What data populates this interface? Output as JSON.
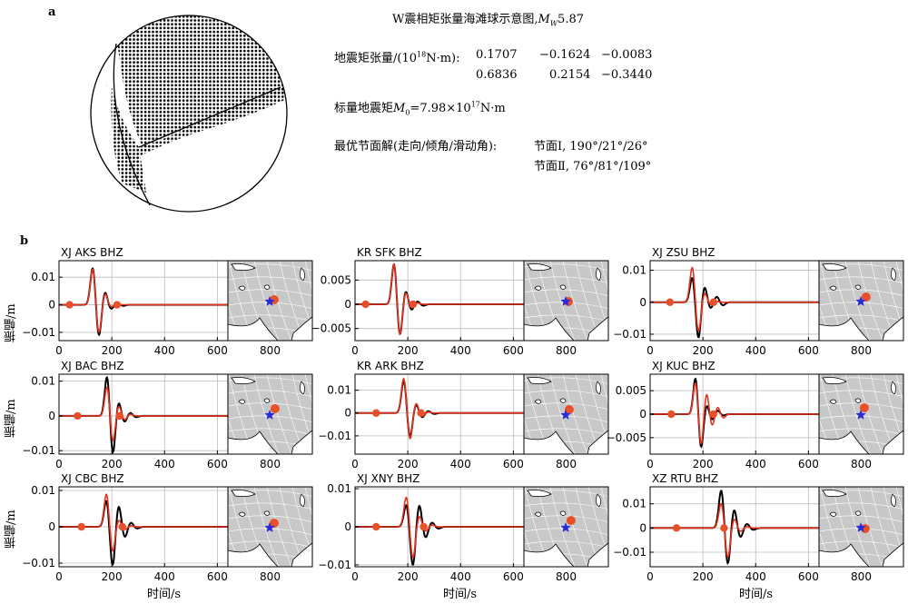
{
  "panel_a": {
    "label": "a",
    "title_prefix": "W震相矩张量海滩球示意图,",
    "mw_symbol": "M",
    "mw_sub": "W",
    "mw_value": "5.87",
    "tensor_label": "地震矩张量/(10",
    "tensor_exp": "18",
    "tensor_unit": "N·m):",
    "tensor_row1": [
      "0.1707",
      "−0.1624",
      "−0.0083"
    ],
    "tensor_row2": [
      "0.6836",
      "0.2154",
      "−0.3440"
    ],
    "scalar_label": "标量地震矩",
    "scalar_symbol": "M",
    "scalar_sub": "0",
    "scalar_value": "=7.98×10",
    "scalar_exp": "17",
    "scalar_unit": "N·m",
    "plane_label": "最优节面解(走向/倾角/滑动角):",
    "plane1": "节面Ⅰ, 190°/21°/26°",
    "plane2": "节面Ⅱ, 76°/81°/109°"
  },
  "panel_b": {
    "label": "b",
    "xlabel": "时间/s",
    "ylabel": "振幅/m"
  },
  "colors": {
    "observed": "#000000",
    "synthetic": "#e8321e",
    "station": "#e8502a",
    "epicenter": "#2b2bd6",
    "map_bg": "#c8c8c8"
  },
  "chart_data": [
    {
      "type": "line",
      "station": "XJ AKS BHZ",
      "xlim": [
        0,
        640
      ],
      "ylim": [
        -0.013,
        0.016
      ],
      "xticks": [
        "0",
        "200",
        "400",
        "600"
      ],
      "yticks": [
        "−0.01",
        "0",
        "0.01"
      ],
      "series": [
        {
          "name": "observed",
          "amps": [
            0.0136,
            -0.0116,
            0.0048,
            -0.0016,
            0.0008,
            -0.0004
          ]
        },
        {
          "name": "synthetic",
          "amps": [
            0.0132,
            -0.0106,
            0.0042,
            -0.0008,
            0.0003,
            0
          ]
        }
      ],
      "t0": 128,
      "period": 46,
      "pick_times": [
        40,
        220
      ]
    },
    {
      "type": "line",
      "station": "KR SFK BHZ",
      "xlim": [
        0,
        640
      ],
      "ylim": [
        -0.0075,
        0.009
      ],
      "xticks": [
        "0",
        "200",
        "400",
        "600"
      ],
      "yticks": [
        "−0.005",
        "0",
        "0.005"
      ],
      "series": [
        {
          "name": "observed",
          "amps": [
            0.0085,
            -0.0066,
            0.0028,
            -0.0012,
            0.0006,
            -0.0003
          ]
        },
        {
          "name": "synthetic",
          "amps": [
            0.0085,
            -0.0066,
            0.0025,
            -0.0008,
            0.0003,
            0
          ]
        }
      ],
      "t0": 148,
      "period": 44,
      "pick_times": [
        40,
        220
      ]
    },
    {
      "type": "line",
      "station": "XJ ZSU BHZ",
      "xlim": [
        0,
        640
      ],
      "ylim": [
        -0.012,
        0.013
      ],
      "xticks": [
        "0",
        "200",
        "400",
        "600"
      ],
      "yticks": [
        "−0.01",
        "0",
        "0.01"
      ],
      "series": [
        {
          "name": "observed",
          "amps": [
            0.008,
            -0.0115,
            0.005,
            -0.002,
            0.0018,
            -0.001
          ]
        },
        {
          "name": "synthetic",
          "amps": [
            0.0112,
            -0.0095,
            0.003,
            -0.0008,
            0.0003,
            0
          ]
        }
      ],
      "t0": 160,
      "period": 46,
      "pick_times": [
        75,
        240
      ]
    },
    {
      "type": "line",
      "station": "XJ BAC BHZ",
      "xlim": [
        0,
        640
      ],
      "ylim": [
        -0.011,
        0.012
      ],
      "xticks": [
        "0",
        "200",
        "400",
        "600"
      ],
      "yticks": [
        "−0.01",
        "0",
        "0.01"
      ],
      "series": [
        {
          "name": "observed",
          "amps": [
            0.0115,
            -0.011,
            0.004,
            -0.0018,
            0.0009,
            -0.0004
          ]
        },
        {
          "name": "synthetic",
          "amps": [
            0.0085,
            -0.0075,
            0.003,
            -0.0012,
            0.0005,
            0
          ]
        }
      ],
      "t0": 182,
      "period": 44,
      "pick_times": [
        70,
        230
      ]
    },
    {
      "type": "line",
      "station": "KR ARK BHZ",
      "xlim": [
        0,
        640
      ],
      "ylim": [
        -0.018,
        0.017
      ],
      "xticks": [
        "0",
        "200",
        "400",
        "600"
      ],
      "yticks": [
        "−0.01",
        "0",
        "0.01"
      ],
      "series": [
        {
          "name": "observed",
          "amps": [
            0.0145,
            -0.011,
            0.004,
            -0.002,
            0.0009,
            -0.0004
          ]
        },
        {
          "name": "synthetic",
          "amps": [
            0.0155,
            -0.012,
            0.0045,
            -0.0015,
            0.0005,
            0
          ]
        }
      ],
      "t0": 185,
      "period": 46,
      "pick_times": [
        80,
        250
      ]
    },
    {
      "type": "line",
      "station": "XJ KUC BHZ",
      "xlim": [
        0,
        640
      ],
      "ylim": [
        -0.0085,
        0.0085
      ],
      "xticks": [
        "0",
        "200",
        "400",
        "600"
      ],
      "yticks": [
        "−0.005",
        "0",
        "0.005"
      ],
      "series": [
        {
          "name": "observed",
          "amps": [
            0.0078,
            -0.0073,
            0.002,
            -0.0012,
            0.0008,
            -0.0003
          ]
        },
        {
          "name": "synthetic",
          "amps": [
            0.0068,
            -0.0067,
            0.0045,
            -0.0025,
            0.0015,
            -0.0008
          ]
        }
      ],
      "t0": 172,
      "period": 42,
      "pick_times": [
        80,
        240
      ]
    },
    {
      "type": "line",
      "station": "XJ CBC BHZ",
      "xlim": [
        0,
        640
      ],
      "ylim": [
        -0.011,
        0.011
      ],
      "xticks": [
        "0",
        "200",
        "400",
        "600"
      ],
      "yticks": [
        "−0.01",
        "0",
        "0.01"
      ],
      "series": [
        {
          "name": "observed",
          "amps": [
            0.0075,
            -0.011,
            0.006,
            -0.003,
            0.0012,
            -0.0005
          ]
        },
        {
          "name": "synthetic",
          "amps": [
            0.0092,
            -0.007,
            0.002,
            -0.0008,
            0.0003,
            0
          ]
        }
      ],
      "t0": 180,
      "period": 46,
      "pick_times": [
        85,
        240
      ]
    },
    {
      "type": "line",
      "station": "XJ XNY BHZ",
      "xlim": [
        0,
        640
      ],
      "ylim": [
        -0.0105,
        0.0105
      ],
      "xticks": [
        "0",
        "200",
        "400",
        "600"
      ],
      "yticks": [
        "−0.01",
        "0",
        "0.01"
      ],
      "series": [
        {
          "name": "observed",
          "amps": [
            0.006,
            -0.0105,
            0.006,
            -0.003,
            0.0012,
            -0.0005
          ]
        },
        {
          "name": "synthetic",
          "amps": [
            0.008,
            -0.0085,
            0.003,
            -0.0012,
            0.0005,
            0
          ]
        }
      ],
      "t0": 195,
      "period": 48,
      "pick_times": [
        80,
        260
      ]
    },
    {
      "type": "line",
      "station": "XZ RTU BHZ",
      "xlim": [
        0,
        640
      ],
      "ylim": [
        -0.016,
        0.017
      ],
      "xticks": [
        "0",
        "200",
        "400",
        "600"
      ],
      "yticks": [
        "−0.01",
        "0",
        "0.01"
      ],
      "series": [
        {
          "name": "observed",
          "amps": [
            0.016,
            -0.0155,
            0.008,
            -0.004,
            0.0018,
            -0.0008
          ]
        },
        {
          "name": "synthetic",
          "amps": [
            0.0105,
            -0.0125,
            0.004,
            -0.0015,
            0.0006,
            0
          ]
        }
      ],
      "t0": 270,
      "period": 48,
      "pick_times": [
        100,
        280
      ]
    }
  ]
}
